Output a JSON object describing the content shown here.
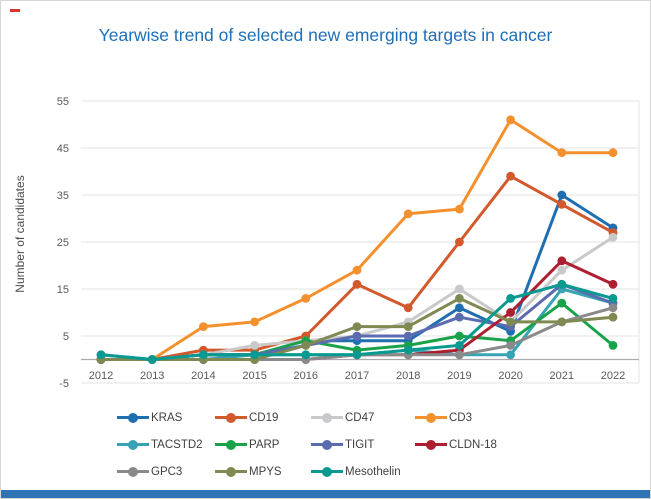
{
  "chart_data": {
    "type": "line",
    "title": "Yearwise trend of selected new emerging targets in cancer",
    "xlabel": "",
    "ylabel": "Number of candidates",
    "x": [
      "2012",
      "2013",
      "2014",
      "2015",
      "2016",
      "2017",
      "2018",
      "2019",
      "2020",
      "2021",
      "2022"
    ],
    "ylim": [
      -5,
      55
    ],
    "yticks": [
      55,
      45,
      35,
      25,
      15,
      5,
      -5
    ],
    "grid": true,
    "legend_position": "bottom",
    "series": [
      {
        "name": "KRAS",
        "color": "#1f6eb0",
        "values": [
          1,
          0,
          1,
          1,
          4,
          4,
          4,
          11,
          6,
          35,
          28
        ]
      },
      {
        "name": "CD19",
        "color": "#d2592b",
        "values": [
          0,
          0,
          2,
          2,
          5,
          16,
          11,
          25,
          39,
          33,
          27
        ]
      },
      {
        "name": "CD47",
        "color": "#c9c9cc",
        "values": [
          0,
          0,
          1,
          3,
          4,
          5,
          8,
          15,
          8,
          19,
          26
        ]
      },
      {
        "name": "CD3",
        "color": "#f4912f",
        "values": [
          0,
          0,
          7,
          8,
          13,
          19,
          31,
          32,
          51,
          44,
          44
        ]
      },
      {
        "name": "TACSTD2",
        "color": "#38a3b4",
        "values": [
          0,
          0,
          0,
          1,
          1,
          1,
          2,
          1,
          1,
          15,
          12
        ]
      },
      {
        "name": "PARP",
        "color": "#1aa24b",
        "values": [
          0,
          0,
          1,
          1,
          4,
          2,
          3,
          5,
          4,
          12,
          3
        ]
      },
      {
        "name": "TIGIT",
        "color": "#5b6bb0",
        "values": [
          0,
          0,
          1,
          1,
          3,
          5,
          5,
          9,
          7,
          16,
          12
        ]
      },
      {
        "name": "CLDN-18",
        "color": "#ae1e31",
        "values": [
          0,
          0,
          0,
          0,
          0,
          1,
          1,
          2,
          10,
          21,
          16
        ]
      },
      {
        "name": "GPC3",
        "color": "#8a8a8a",
        "values": [
          0,
          0,
          0,
          0,
          0,
          1,
          1,
          1,
          3,
          8,
          11
        ]
      },
      {
        "name": "MPYS",
        "color": "#7f8a52",
        "values": [
          0,
          0,
          0,
          0,
          3,
          7,
          7,
          13,
          8,
          8,
          9
        ]
      },
      {
        "name": "Mesothelin",
        "color": "#089a90",
        "values": [
          1,
          0,
          1,
          1,
          1,
          1,
          2,
          3,
          13,
          16,
          13
        ]
      }
    ]
  },
  "decor": {
    "bottom_bar_color": "#2e74b5",
    "red_mark_color": "#e03131",
    "title_color": "#1e6fb8"
  }
}
